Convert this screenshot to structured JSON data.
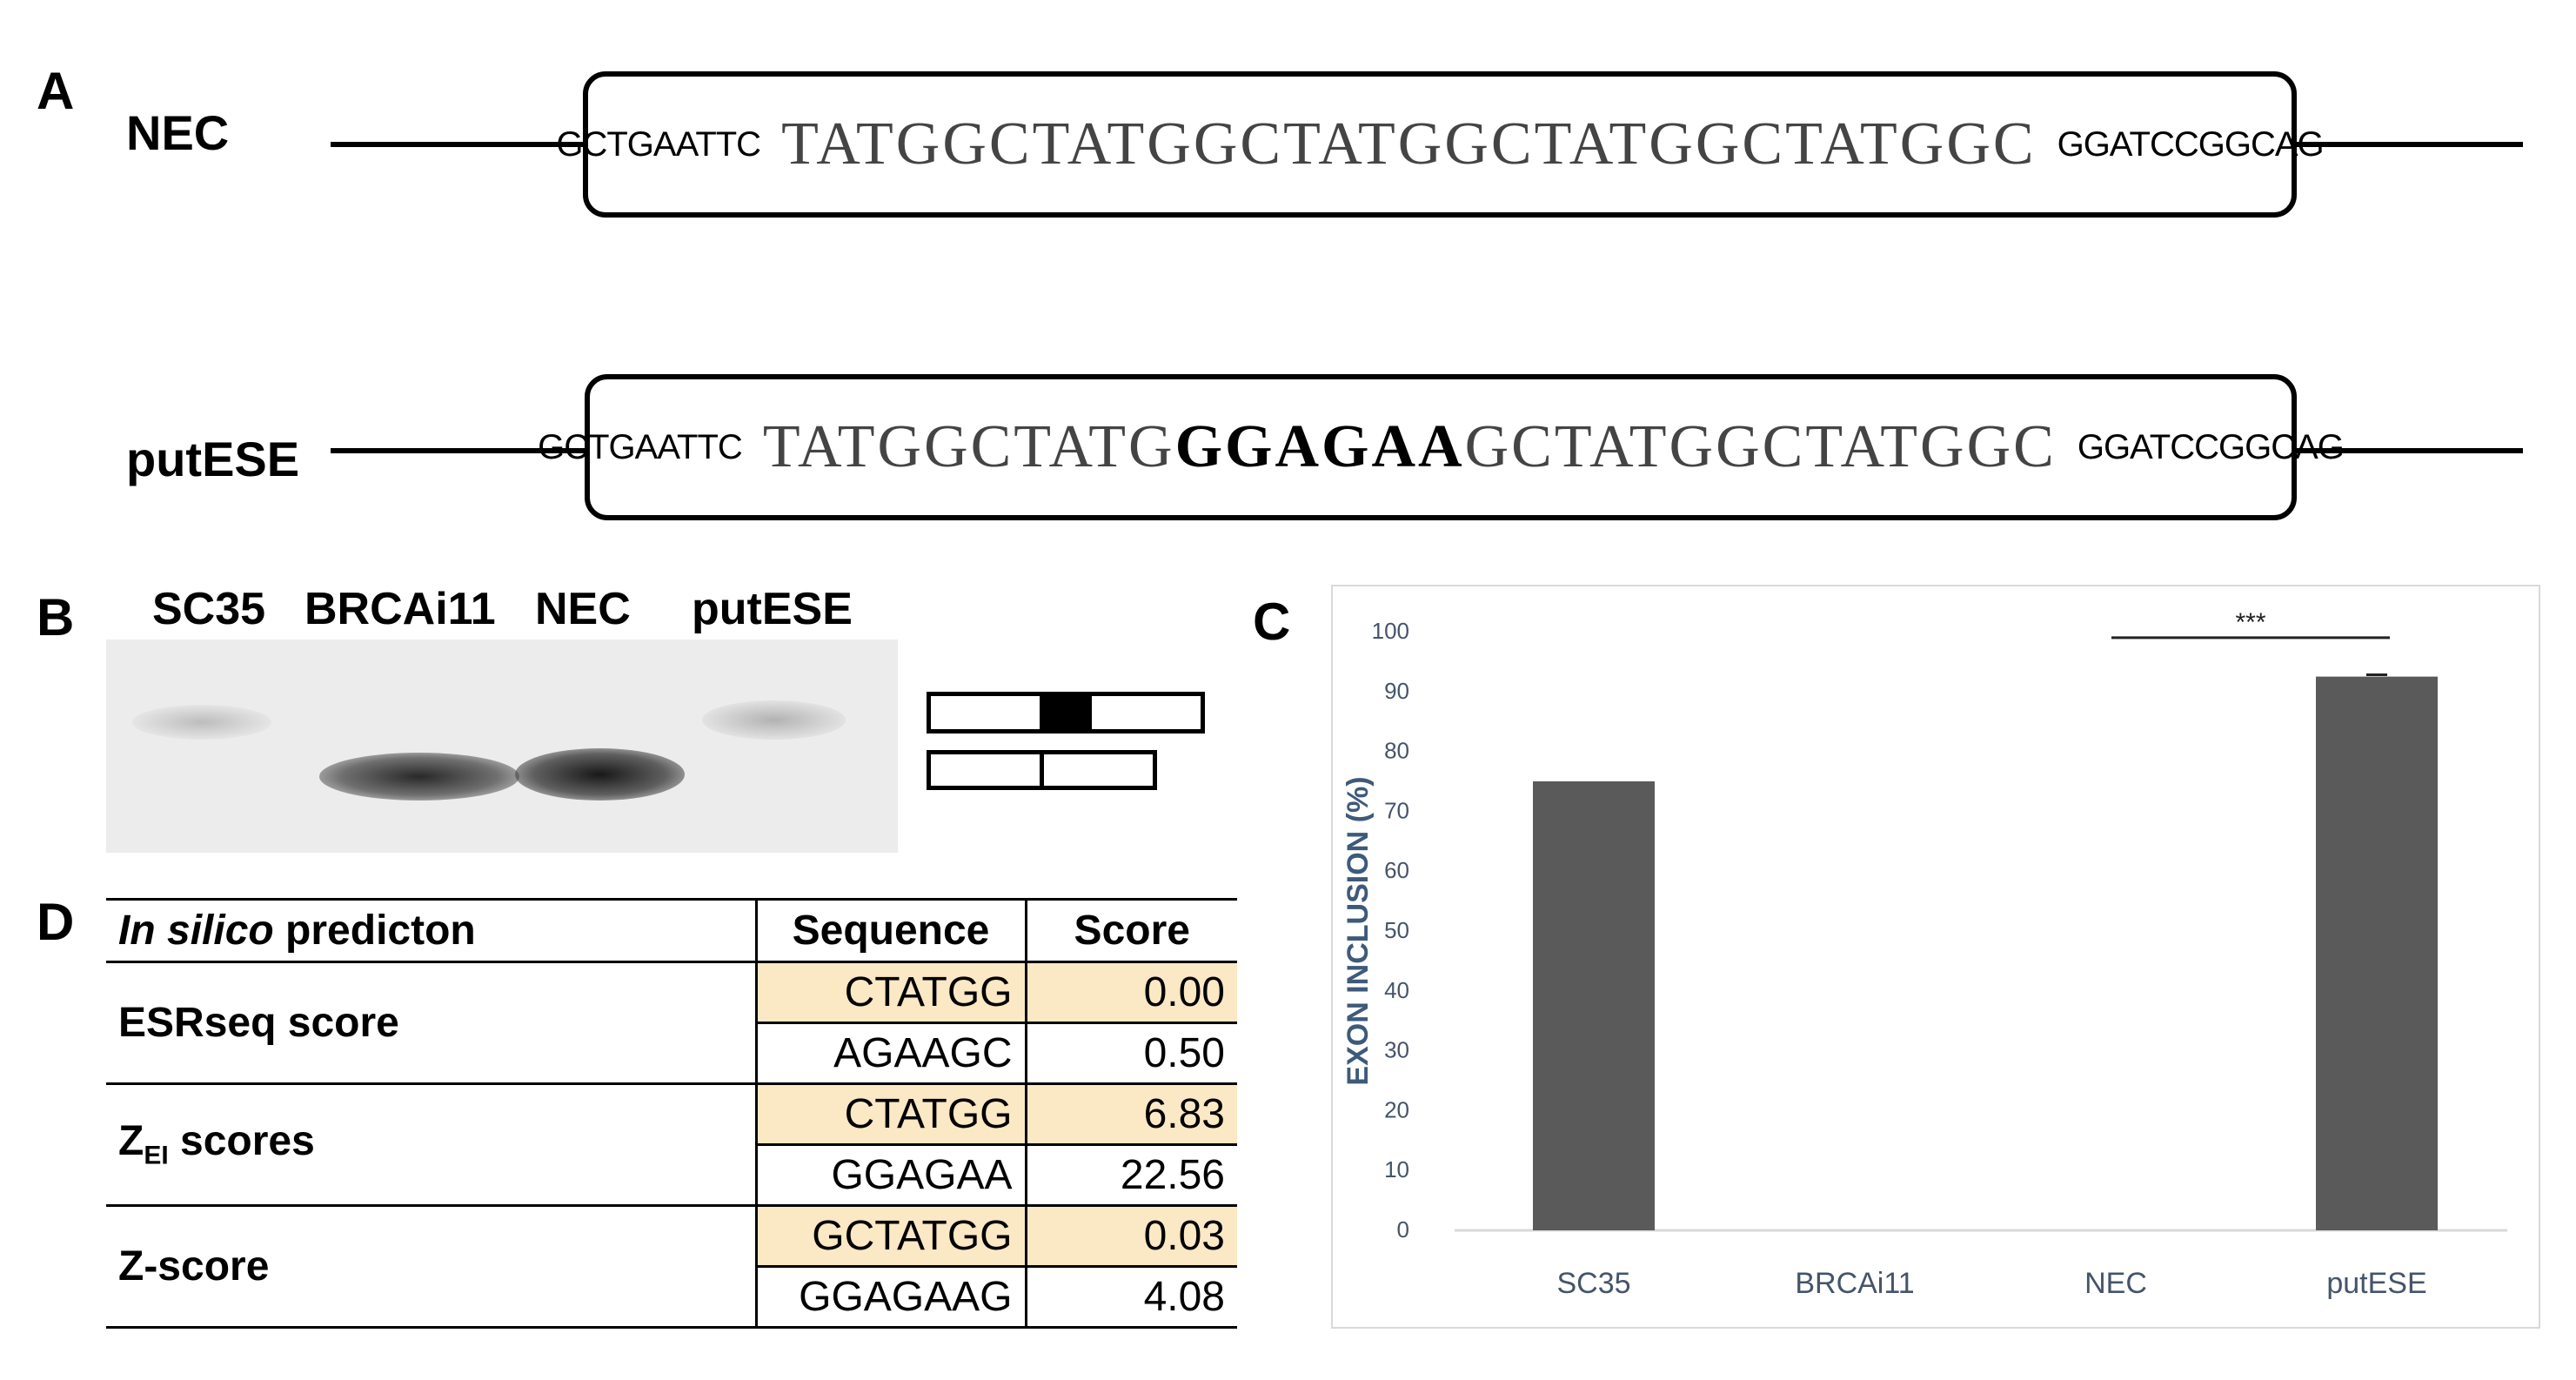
{
  "panel_a": {
    "letter": "A",
    "constructs": [
      {
        "name": "NEC",
        "flank_left": "GCTGAATTC",
        "core_pre": "TATGGCTATGGCTATGGCTATGGCTATGGC",
        "core_bold": "",
        "core_post": "",
        "flank_right": "GGATCCGGCAG"
      },
      {
        "name": "putESE",
        "flank_left": "GCTGAATTC",
        "core_pre": "TATGGCTATG",
        "core_bold": "GGAGAA",
        "core_post": "GCTATGGCTATGGC",
        "flank_right": "GGATCCGGCAG"
      }
    ]
  },
  "panel_b": {
    "letter": "B",
    "lanes": [
      "SC35",
      "BRCAi11",
      "NEC",
      "putESE"
    ],
    "bands": [
      {
        "lane": "SC35",
        "product": "upper",
        "intensity": "faint"
      },
      {
        "lane": "BRCAi11",
        "product": "lower",
        "intensity": "strong"
      },
      {
        "lane": "NEC",
        "product": "lower",
        "intensity": "strong"
      },
      {
        "lane": "putESE",
        "product": "upper",
        "intensity": "faint"
      }
    ]
  },
  "panel_c": {
    "letter": "C",
    "significance": "***"
  },
  "chart_data": {
    "type": "bar",
    "categories": [
      "SC35",
      "BRCAi11",
      "NEC",
      "putESE"
    ],
    "values": [
      75,
      0,
      0,
      92.5
    ],
    "error": [
      0,
      0,
      0,
      0.3
    ],
    "ylabel": "EXON INCLUSION (%)",
    "xlabel": "",
    "ylim": [
      0,
      100
    ],
    "yticks": [
      "0",
      "10",
      "20",
      "30",
      "40",
      "50",
      "60",
      "70",
      "80",
      "90",
      "100"
    ],
    "grid": false,
    "bar_color": "#5a5a5a",
    "axis_text_color": "#44546a",
    "ylabel_color": "#3e5a7a"
  },
  "panel_d": {
    "letter": "D",
    "header": {
      "col1_italic": "In silico",
      "col1_rest": " predicton",
      "col2": "Sequence",
      "col3": "Score"
    },
    "groups": [
      {
        "label": "ESRseq score",
        "label_sub": "",
        "label_rest": "",
        "rows": [
          {
            "sequence": "CTATGG",
            "score": "0.00",
            "highlight": true
          },
          {
            "sequence": "AGAAGC",
            "score": "0.50",
            "highlight": false
          }
        ]
      },
      {
        "label": "Z",
        "label_sub": "EI",
        "label_rest": " scores",
        "rows": [
          {
            "sequence": "CTATGG",
            "score": "6.83",
            "highlight": true
          },
          {
            "sequence": "GGAGAA",
            "score": "22.56",
            "highlight": false
          }
        ]
      },
      {
        "label": "Z-score",
        "label_sub": "",
        "label_rest": "",
        "rows": [
          {
            "sequence": "GCTATGG",
            "score": "0.03",
            "highlight": true
          },
          {
            "sequence": "GGAGAAG",
            "score": "4.08",
            "highlight": false
          }
        ]
      }
    ],
    "highlight_color": "#fbe8c4"
  }
}
